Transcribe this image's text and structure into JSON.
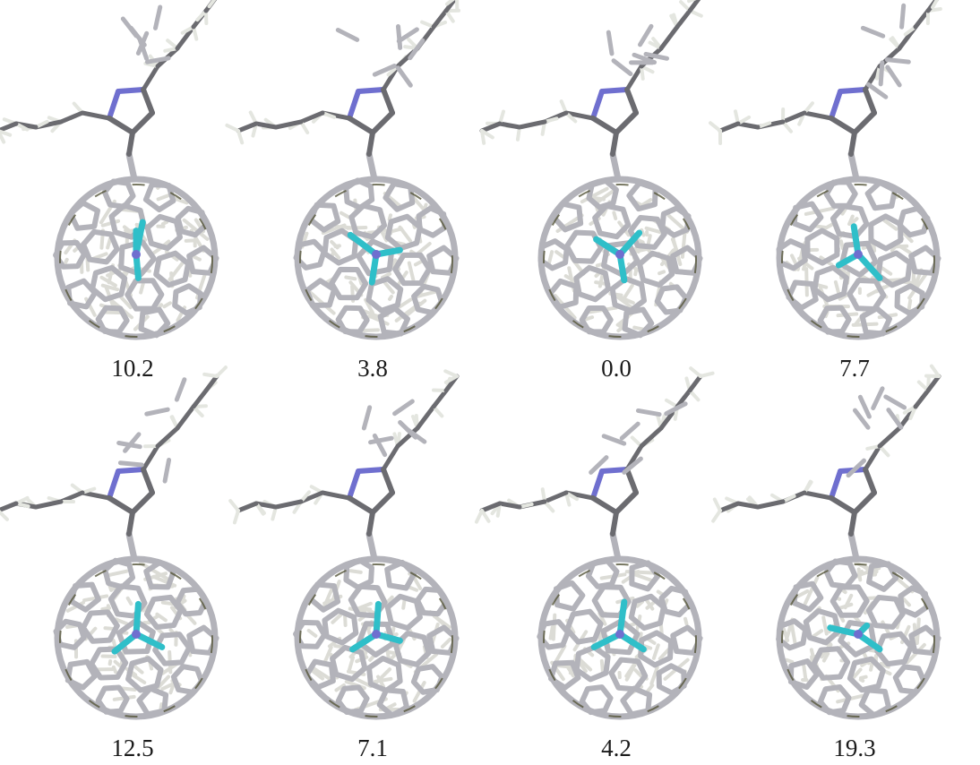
{
  "figure": {
    "labels": [
      "10.2",
      "3.8",
      "0.0",
      "7.7",
      "12.5",
      "7.1",
      "4.2",
      "19.3"
    ]
  },
  "colors": {
    "carbon": "#b3b3ba",
    "carbon_dark": "#6b6b70",
    "cage_shadow": "#55553a",
    "nitrogen": "#6f6fcf",
    "fluorine": "#2fbfc9",
    "hydrogen": "#e4e6e0",
    "label_text": "#1a1a1a"
  }
}
